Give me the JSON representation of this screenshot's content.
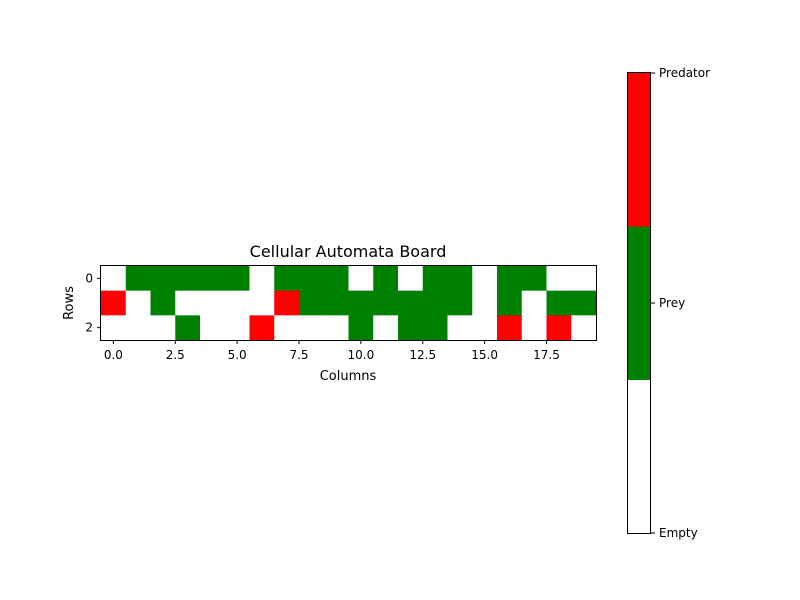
{
  "chart_data": {
    "type": "heatmap",
    "title": "Cellular Automata Board",
    "xlabel": "Columns",
    "ylabel": "Rows",
    "x_ticks": [
      "0.0",
      "2.5",
      "5.0",
      "7.5",
      "10.0",
      "12.5",
      "15.0",
      "17.5"
    ],
    "x_tick_values": [
      0,
      2.5,
      5,
      7.5,
      10,
      12.5,
      15,
      17.5
    ],
    "y_ticks": [
      "0",
      "2"
    ],
    "y_tick_values": [
      0,
      2
    ],
    "xlim": [
      -0.5,
      19.5
    ],
    "ylim": [
      2.5,
      -0.5
    ],
    "states": [
      "Empty",
      "Prey",
      "Predator"
    ],
    "colors": {
      "Empty": "#ffffff",
      "Prey": "#008000",
      "Predator": "#ff0000"
    },
    "grid": [
      [
        0,
        1,
        1,
        1,
        1,
        1,
        0,
        1,
        1,
        1,
        0,
        1,
        0,
        1,
        1,
        0,
        1,
        1,
        0,
        0
      ],
      [
        2,
        0,
        1,
        0,
        0,
        0,
        0,
        2,
        1,
        1,
        1,
        1,
        1,
        1,
        1,
        0,
        1,
        0,
        1,
        1
      ],
      [
        0,
        0,
        0,
        1,
        0,
        0,
        2,
        0,
        0,
        0,
        1,
        0,
        1,
        1,
        0,
        0,
        2,
        0,
        2,
        0
      ]
    ],
    "colorbar": {
      "ticks": [
        "Empty",
        "Prey",
        "Predator"
      ]
    }
  }
}
